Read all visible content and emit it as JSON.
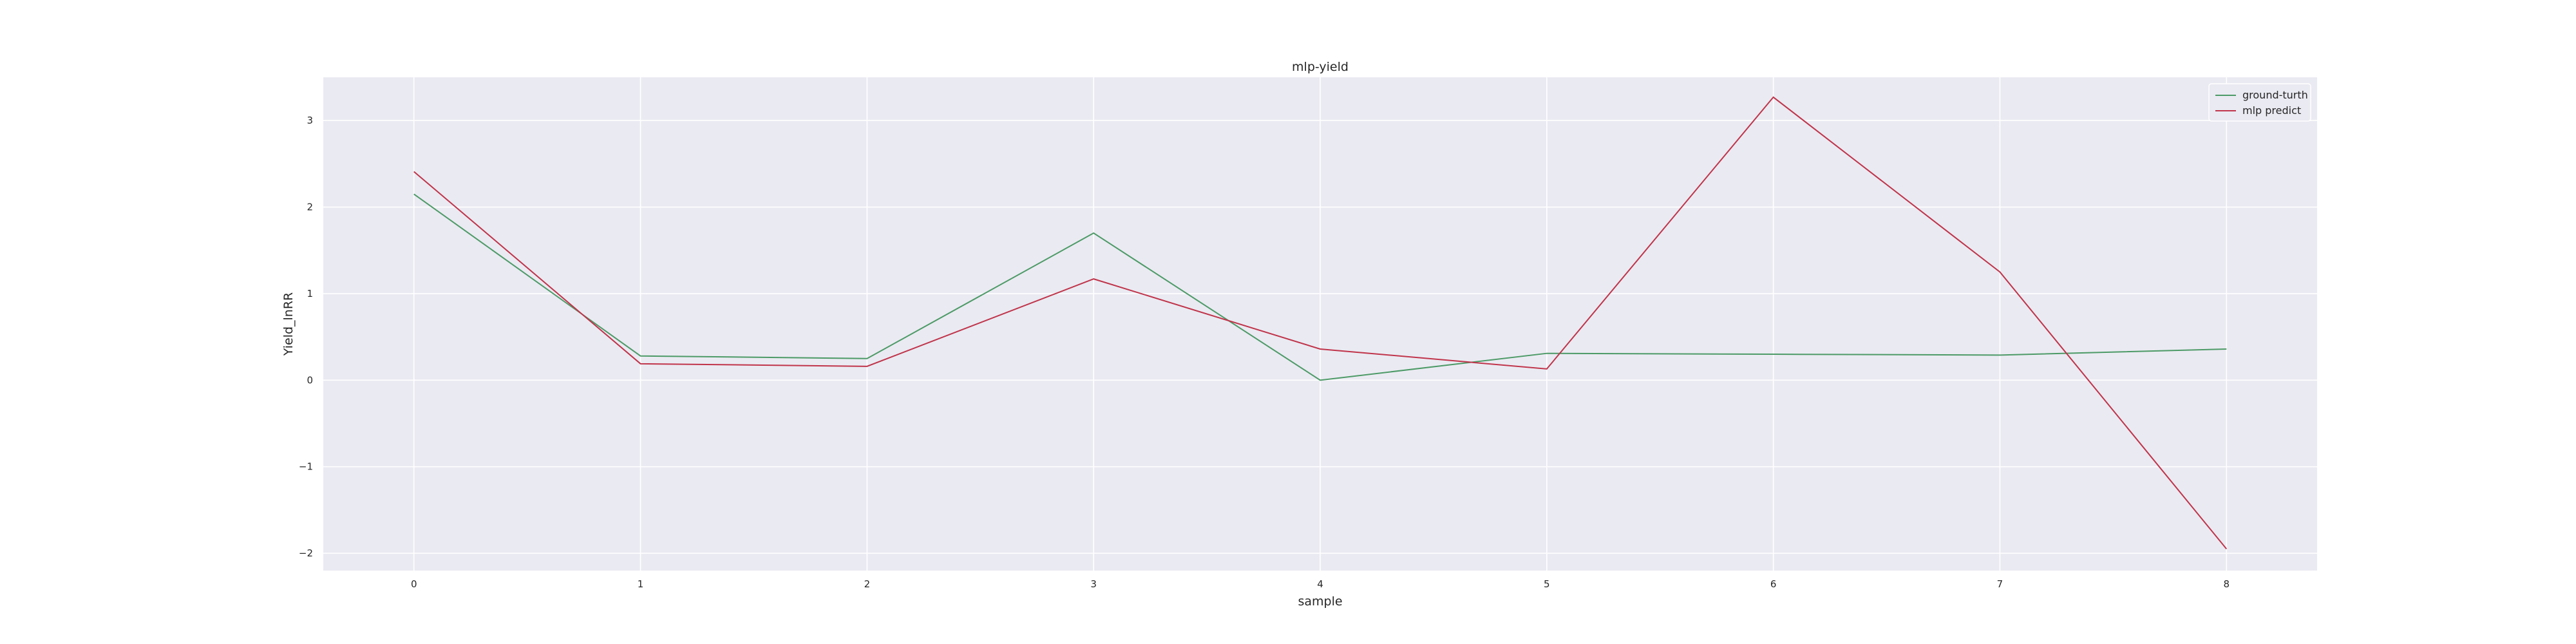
{
  "chart_data": {
    "type": "line",
    "title": "mlp-yield",
    "xlabel": "sample",
    "ylabel": "Yield_lnRR",
    "x": [
      0,
      1,
      2,
      3,
      4,
      5,
      6,
      7,
      8
    ],
    "xticks": [
      0,
      1,
      2,
      3,
      4,
      5,
      6,
      7,
      8
    ],
    "yticks": [
      -2,
      -1,
      0,
      1,
      2,
      3
    ],
    "ytick_labels": [
      "−2",
      "−1",
      "0",
      "1",
      "2",
      "3"
    ],
    "xlim": [
      -0.4,
      8.4
    ],
    "ylim": [
      -2.2,
      3.5
    ],
    "grid": true,
    "legend_position": "top-right",
    "series": [
      {
        "name": "ground-turth",
        "color": "#4c9a66",
        "values": [
          2.15,
          0.28,
          0.25,
          1.7,
          0.0,
          0.31,
          0.3,
          0.29,
          0.36
        ]
      },
      {
        "name": "mlp predict",
        "color": "#c0344a",
        "values": [
          2.41,
          0.19,
          0.16,
          1.17,
          0.36,
          0.13,
          3.27,
          1.25,
          -1.95
        ]
      }
    ]
  }
}
